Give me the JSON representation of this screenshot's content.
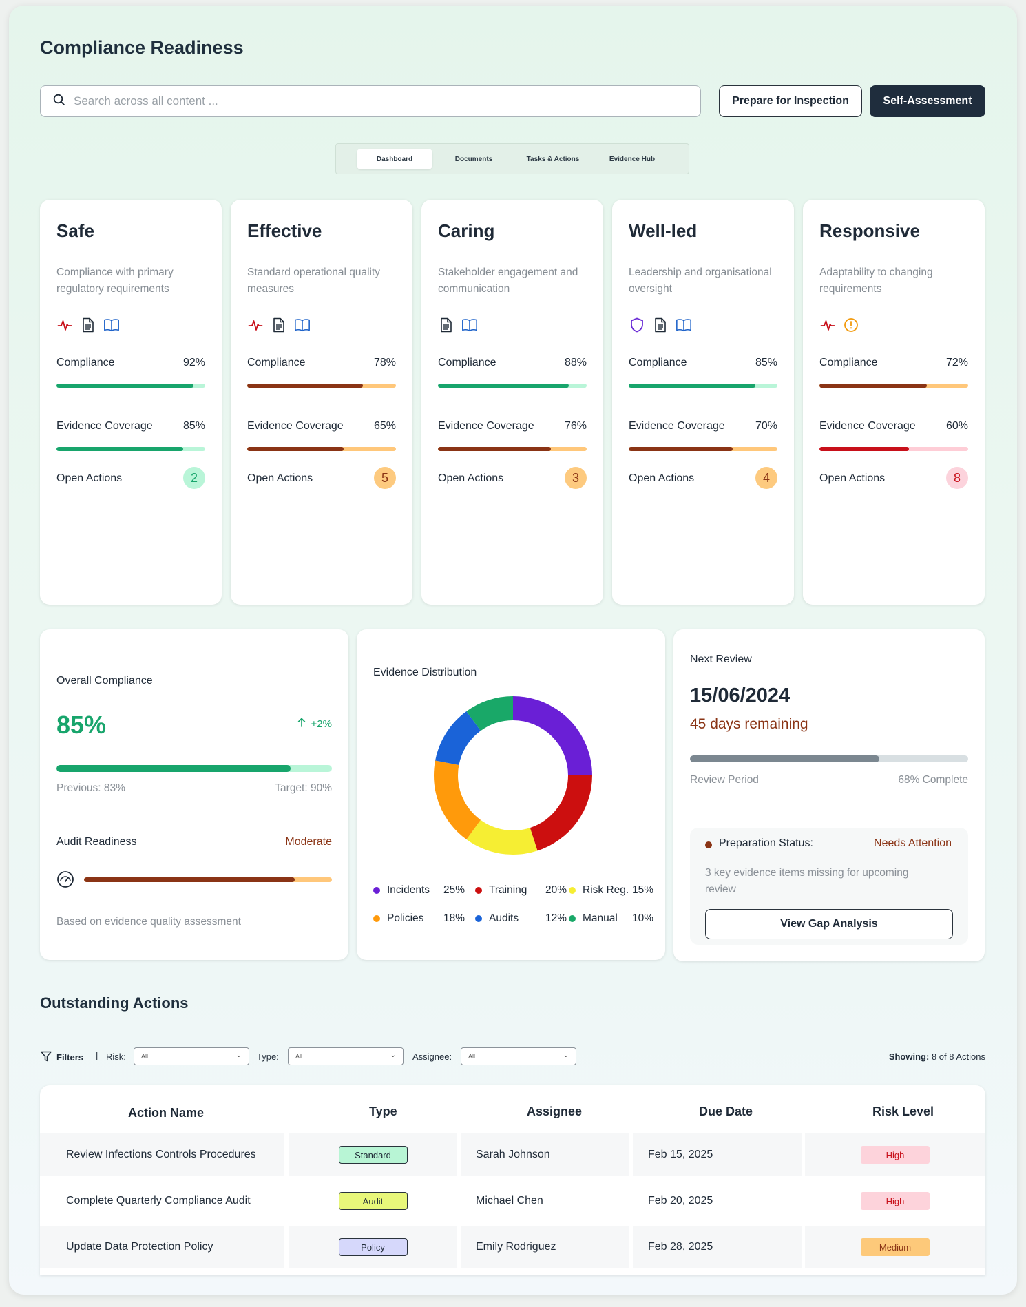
{
  "page": {
    "title": "Compliance Readiness"
  },
  "search": {
    "placeholder": "Search across all content ..."
  },
  "actions": {
    "prepare": "Prepare for Inspection",
    "self_assessment": "Self-Assessment"
  },
  "tabs": [
    "Dashboard",
    "Documents",
    "Tasks & Actions",
    "Evidence Hub"
  ],
  "domains": [
    {
      "title": "Safe",
      "desc": "Compliance with primary regulatory requirements",
      "icons": [
        "activity-icon",
        "document-icon",
        "book-icon"
      ],
      "compliance_label": "Compliance",
      "compliance": "92%",
      "compliance_pct": 92,
      "evidence_label": "Evidence Coverage",
      "evidence": "85%",
      "evidence_pct": 85,
      "open_label": "Open Actions",
      "open": "2"
    },
    {
      "title": "Effective",
      "desc": "Standard operational quality measures",
      "icons": [
        "activity-icon",
        "document-icon",
        "book-icon"
      ],
      "compliance_label": "Compliance",
      "compliance": "78%",
      "compliance_pct": 78,
      "evidence_label": "Evidence Coverage",
      "evidence": "65%",
      "evidence_pct": 65,
      "open_label": "Open Actions",
      "open": "5"
    },
    {
      "title": "Caring",
      "desc": "Stakeholder engagement and communication",
      "icons": [
        "document-icon",
        "book-icon"
      ],
      "compliance_label": "Compliance",
      "compliance": "88%",
      "compliance_pct": 88,
      "evidence_label": "Evidence Coverage",
      "evidence": "76%",
      "evidence_pct": 76,
      "open_label": "Open Actions",
      "open": "3"
    },
    {
      "title": "Well-led",
      "desc": "Leadership and organisational oversight",
      "icons": [
        "shield-icon",
        "document-icon",
        "book-icon"
      ],
      "compliance_label": "Compliance",
      "compliance": "85%",
      "compliance_pct": 85,
      "evidence_label": "Evidence Coverage",
      "evidence": "70%",
      "evidence_pct": 70,
      "open_label": "Open Actions",
      "open": "4"
    },
    {
      "title": "Responsive",
      "desc": "Adaptability to changing requirements",
      "icons": [
        "activity-icon",
        "alert-circle-icon"
      ],
      "compliance_label": "Compliance",
      "compliance": "72%",
      "compliance_pct": 72,
      "evidence_label": "Evidence Coverage",
      "evidence": "60%",
      "evidence_pct": 60,
      "open_label": "Open Actions",
      "open": "8"
    }
  ],
  "overall": {
    "label": "Overall Compliance",
    "value": "85%",
    "value_pct": 85,
    "delta": "+2%",
    "previous": "Previous: 83%",
    "target": "Target: 90%",
    "audit_label": "Audit Readiness",
    "audit_status": "Moderate",
    "audit_pct": 85,
    "note": "Based on evidence quality assessment"
  },
  "evidence_dist": {
    "title": "Evidence Distribution",
    "legend": [
      {
        "name": "Incidents",
        "pct": "25%"
      },
      {
        "name": "Training",
        "pct": "20%"
      },
      {
        "name": "Risk Reg.",
        "pct": "15%"
      },
      {
        "name": "Policies",
        "pct": "18%"
      },
      {
        "name": "Audits",
        "pct": "12%"
      },
      {
        "name": "Manual",
        "pct": "10%"
      }
    ]
  },
  "chart_data": {
    "type": "pie",
    "categories": [
      "Incidents",
      "Training",
      "Risk Reg.",
      "Policies",
      "Audits",
      "Manual"
    ],
    "values": [
      25,
      20,
      15,
      18,
      12,
      10
    ],
    "colors": [
      "#6a1fd6",
      "#cc0f0f",
      "#f6ee33",
      "#ff9a0b",
      "#1a63d8",
      "#19a868"
    ],
    "title": "Evidence Distribution",
    "legend": "bottom"
  },
  "review": {
    "label": "Next Review",
    "date": "15/06/2024",
    "remaining": "45 days remaining",
    "progress_pct": 68,
    "period_label": "Review Period",
    "complete": "68% Complete",
    "prep_label": "Preparation Status:",
    "prep_status": "Needs Attention",
    "prep_note": "3 key evidence items missing for upcoming review",
    "gap_button": "View Gap Analysis"
  },
  "outstanding": {
    "title": "Outstanding Actions",
    "filters_label": "Filters",
    "risk_label": "Risk:",
    "type_label": "Type:",
    "assignee_label": "Assignee:",
    "risk_value": "All",
    "type_value": "All",
    "assignee_value": "All",
    "showing_label": "Showing:",
    "showing_value": "8 of 8 Actions",
    "columns": [
      "Action Name",
      "Type",
      "Assignee",
      "Due Date",
      "Risk Level"
    ],
    "rows": [
      {
        "name": "Review Infections Controls Procedures",
        "type": "Standard",
        "assignee": "Sarah Johnson",
        "due": "Feb 15, 2025",
        "risk": "High"
      },
      {
        "name": "Complete Quarterly Compliance Audit",
        "type": "Audit",
        "assignee": "Michael Chen",
        "due": "Feb 20, 2025",
        "risk": "High"
      },
      {
        "name": "Update Data Protection Policy",
        "type": "Policy",
        "assignee": "Emily Rodriguez",
        "due": "Feb 28, 2025",
        "risk": "Medium"
      }
    ]
  },
  "colors": {
    "green": "#18a56c",
    "green_track": "#b9f5d8",
    "brown": "#8a3415",
    "orange_track": "#ffc77a",
    "red": "#c8101a",
    "red_track": "#fecdd6",
    "accent_dark": "#1f2d3d"
  }
}
